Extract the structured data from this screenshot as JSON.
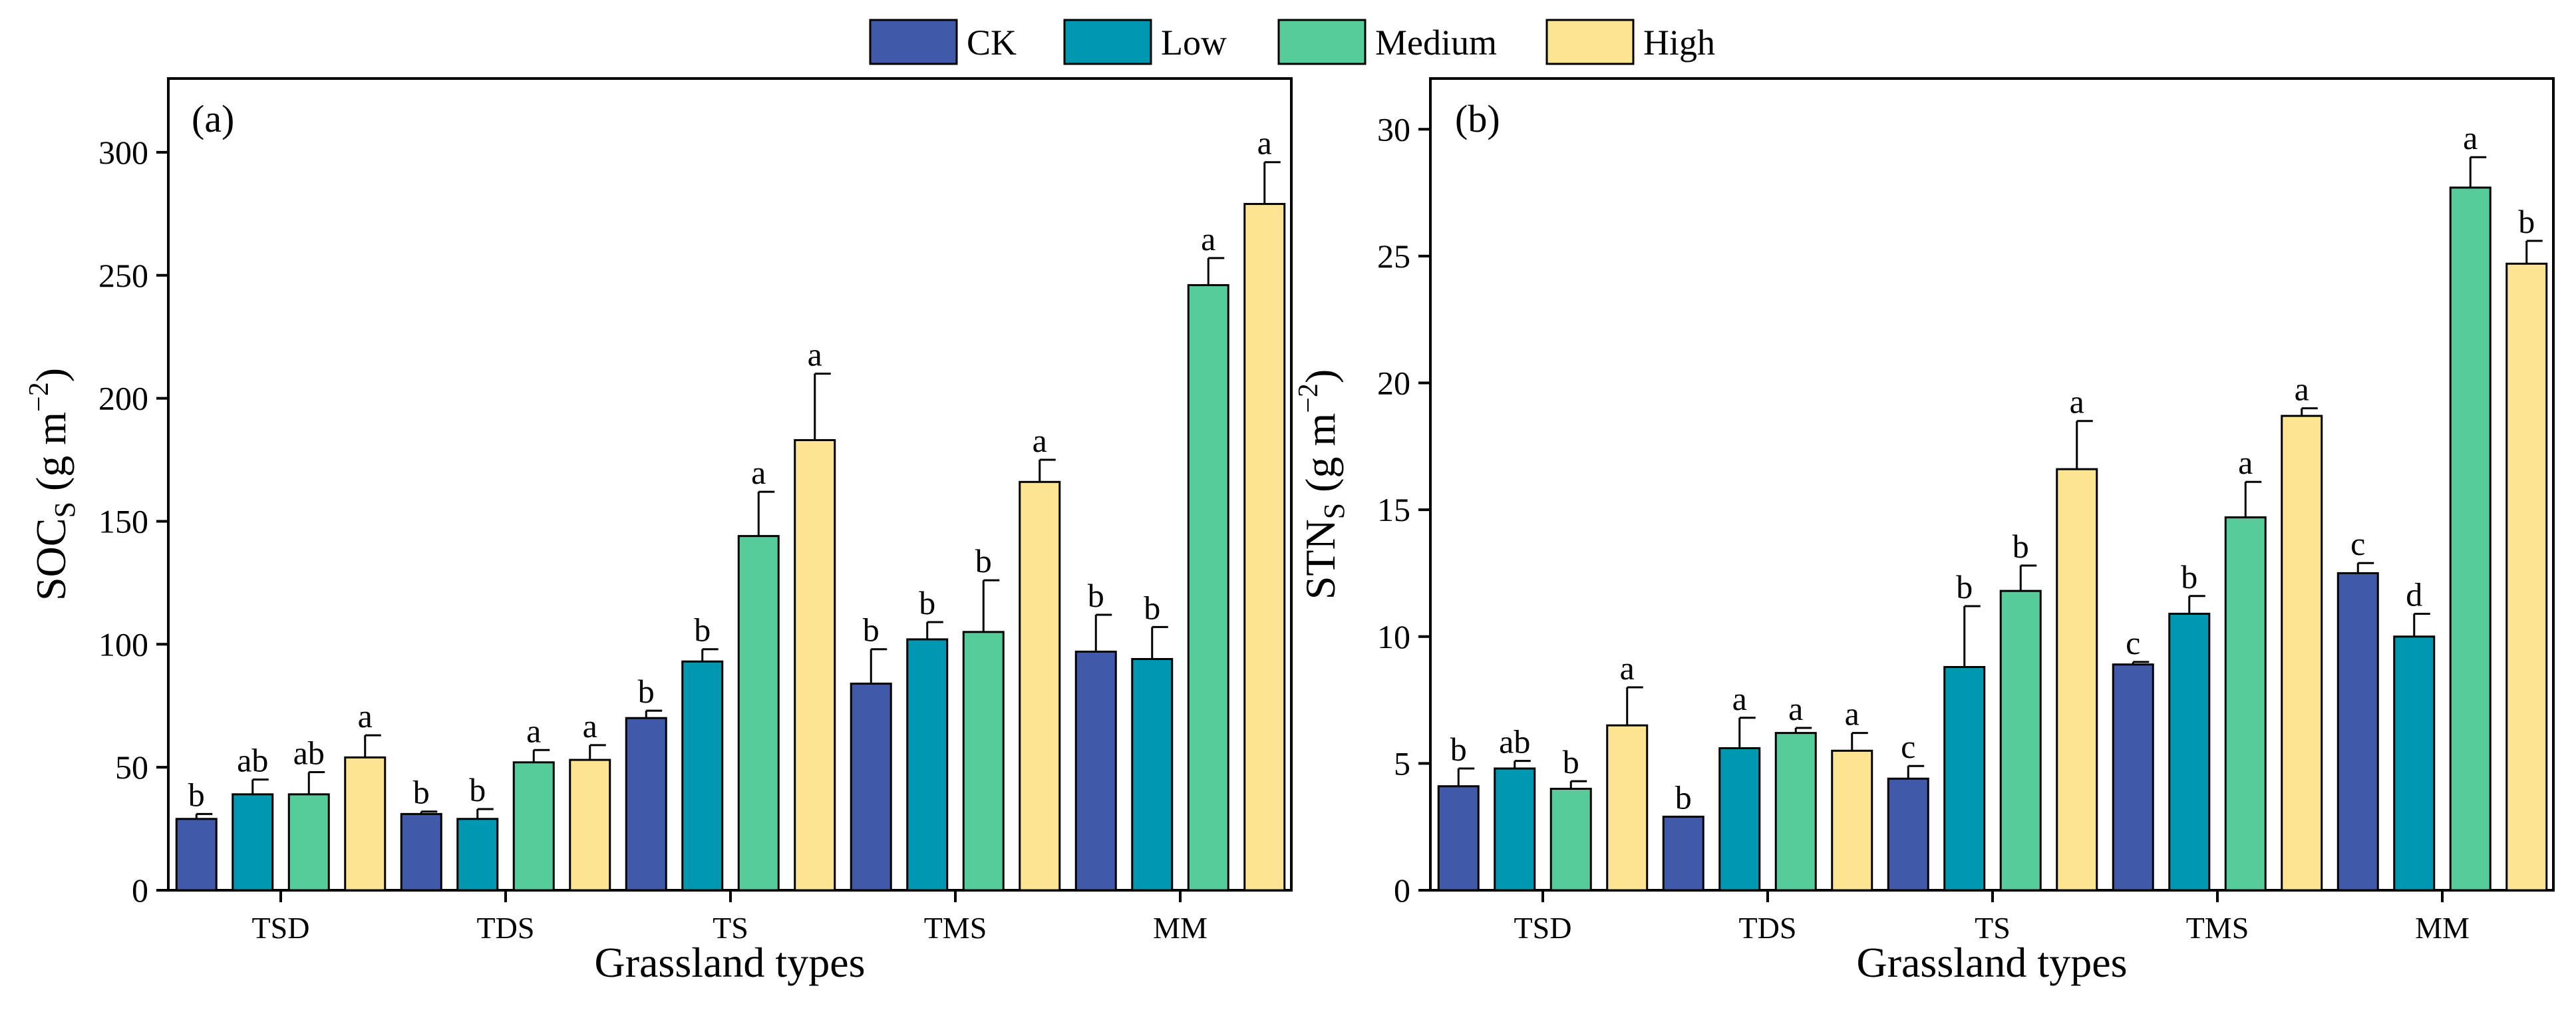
{
  "legend": {
    "items": [
      {
        "label": "CK",
        "color": "#4059a8"
      },
      {
        "label": "Low",
        "color": "#0097b0"
      },
      {
        "label": "Medium",
        "color": "#55cc9a"
      },
      {
        "label": "High",
        "color": "#fde491"
      }
    ]
  },
  "chart_data": [
    {
      "type": "bar",
      "panel_label": "(a)",
      "title": "",
      "xlabel": "Grassland types",
      "ylabel": "SOC",
      "ylabel_sub": "S",
      "ylabel_units": " (g m",
      "ylabel_sup": "−2",
      "ylabel_close": ")",
      "ylim": [
        0,
        330
      ],
      "yticks": [
        0,
        50,
        100,
        150,
        200,
        250,
        300
      ],
      "categories": [
        "TSD",
        "TDS",
        "TS",
        "TMS",
        "MM"
      ],
      "series": [
        {
          "name": "CK",
          "values": [
            29,
            31,
            70,
            84,
            97
          ],
          "errors": [
            2,
            1,
            3,
            14,
            15
          ],
          "letters": [
            "b",
            "b",
            "b",
            "b",
            "b"
          ]
        },
        {
          "name": "Low",
          "values": [
            39,
            29,
            93,
            102,
            94
          ],
          "errors": [
            6,
            4,
            5,
            7,
            13
          ],
          "letters": [
            "ab",
            "b",
            "b",
            "b",
            "b"
          ]
        },
        {
          "name": "Medium",
          "values": [
            39,
            52,
            144,
            105,
            246
          ],
          "errors": [
            9,
            5,
            18,
            21,
            11
          ],
          "letters": [
            "ab",
            "a",
            "a",
            "b",
            "a"
          ]
        },
        {
          "name": "High",
          "values": [
            54,
            53,
            183,
            166,
            279
          ],
          "errors": [
            9,
            6,
            27,
            9,
            17
          ],
          "letters": [
            "a",
            "a",
            "a",
            "a",
            "a"
          ]
        }
      ]
    },
    {
      "type": "bar",
      "panel_label": "(b)",
      "title": "",
      "xlabel": "Grassland types",
      "ylabel": "STN",
      "ylabel_sub": "S",
      "ylabel_units": " (g m",
      "ylabel_sup": "−2",
      "ylabel_close": ")",
      "ylim": [
        0,
        32
      ],
      "yticks": [
        0,
        5,
        10,
        15,
        20,
        25,
        30
      ],
      "categories": [
        "TSD",
        "TDS",
        "TS",
        "TMS",
        "MM"
      ],
      "series": [
        {
          "name": "CK",
          "values": [
            4.1,
            2.9,
            4.4,
            8.9,
            12.5
          ],
          "errors": [
            0.7,
            0,
            0.5,
            0.1,
            0.4
          ],
          "letters": [
            "b",
            "b",
            "c",
            "c",
            "c"
          ]
        },
        {
          "name": "Low",
          "values": [
            4.8,
            5.6,
            8.8,
            10.9,
            10.0
          ],
          "errors": [
            0.3,
            1.2,
            2.4,
            0.7,
            0.9
          ],
          "letters": [
            "ab",
            "a",
            "b",
            "b",
            "d"
          ]
        },
        {
          "name": "Medium",
          "values": [
            4.0,
            6.2,
            11.8,
            14.7,
            27.7
          ],
          "errors": [
            0.3,
            0.2,
            1.0,
            1.4,
            1.2
          ],
          "letters": [
            "b",
            "a",
            "b",
            "a",
            "a"
          ]
        },
        {
          "name": "High",
          "values": [
            6.5,
            5.5,
            16.6,
            18.7,
            24.7
          ],
          "errors": [
            1.5,
            0.7,
            1.9,
            0.3,
            0.9
          ],
          "letters": [
            "a",
            "a",
            "a",
            "a",
            "b"
          ]
        }
      ]
    }
  ]
}
